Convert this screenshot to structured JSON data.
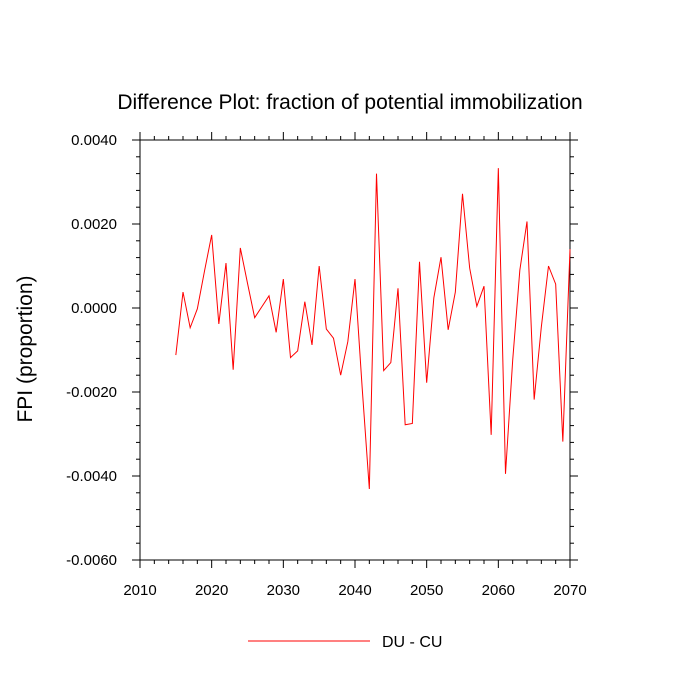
{
  "chart_data": {
    "type": "line",
    "title": "Difference Plot: fraction of potential immobilization",
    "xlabel": "",
    "ylabel": "FPI  (proportion)",
    "xlim": [
      2010,
      2070
    ],
    "ylim": [
      -0.006,
      0.004
    ],
    "x_ticks": [
      2010,
      2020,
      2030,
      2040,
      2050,
      2060,
      2070
    ],
    "x_tick_labels": [
      "2010",
      "2020",
      "2030",
      "2040",
      "2050",
      "2060",
      "2070"
    ],
    "y_ticks": [
      0.004,
      0.002,
      0.0,
      -0.002,
      -0.004,
      -0.006
    ],
    "y_tick_labels": [
      "0.0040",
      "0.0020",
      "0.0000",
      "-0.0020",
      "-0.0040",
      "-0.0060"
    ],
    "legend_position": "bottom-center",
    "series": [
      {
        "name": "DU - CU",
        "color": "#ff0000",
        "x": [
          2015,
          2016,
          2017,
          2018,
          2019,
          2020,
          2021,
          2022,
          2023,
          2024,
          2025,
          2026,
          2027,
          2028,
          2029,
          2030,
          2031,
          2032,
          2033,
          2034,
          2035,
          2036,
          2037,
          2038,
          2039,
          2040,
          2041,
          2042,
          2043,
          2044,
          2045,
          2046,
          2047,
          2048,
          2049,
          2050,
          2051,
          2052,
          2053,
          2054,
          2055,
          2056,
          2057,
          2058,
          2059,
          2060,
          2061,
          2062,
          2063,
          2064,
          2065,
          2066,
          2067,
          2068,
          2069,
          2070
        ],
        "values": [
          -0.00112,
          0.00038,
          -0.00047,
          -2e-05,
          0.00088,
          0.00174,
          -0.00038,
          0.00107,
          -0.00147,
          0.00143,
          0.00059,
          -0.00023,
          3e-05,
          0.00029,
          -0.00058,
          0.00069,
          -0.00118,
          -0.00102,
          0.00015,
          -0.00088,
          0.001,
          -0.0005,
          -0.00072,
          -0.0016,
          -0.0008,
          0.00069,
          -0.0019,
          -0.00431,
          0.0032,
          -0.00149,
          -0.0013,
          0.00047,
          -0.00278,
          -0.00275,
          0.0011,
          -0.00178,
          0.00024,
          0.00121,
          -0.00052,
          0.00038,
          0.00272,
          0.00095,
          4e-05,
          0.00052,
          -0.00302,
          0.00333,
          -0.00395,
          -0.00125,
          0.0009,
          0.00206,
          -0.00218,
          -0.00045,
          0.001,
          0.00057,
          -0.00318,
          0.0014
        ]
      }
    ]
  }
}
